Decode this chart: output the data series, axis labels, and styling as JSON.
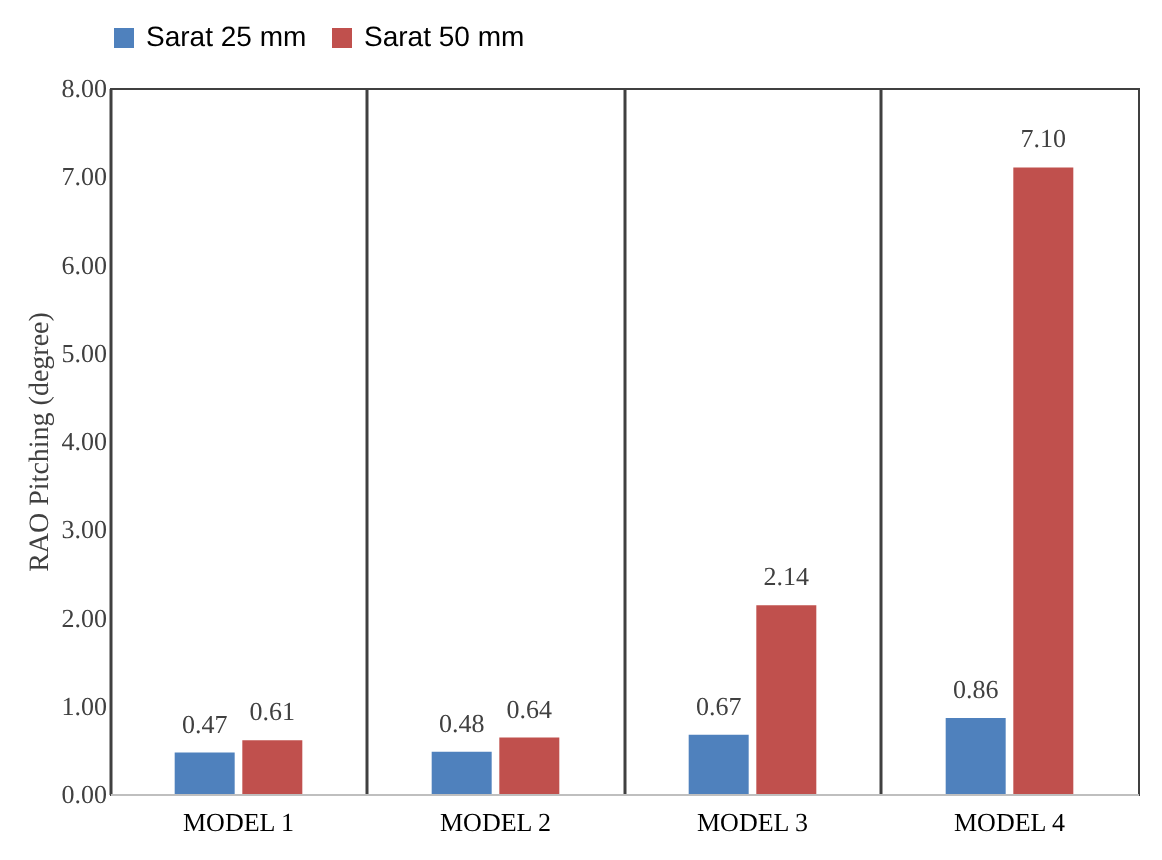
{
  "chart_data": {
    "type": "bar",
    "ylabel": "RAO Pitching (degree)",
    "categories": [
      "MODEL 1",
      "MODEL 2",
      "MODEL 3",
      "MODEL 4"
    ],
    "series": [
      {
        "name": "Sarat 25 mm",
        "color": "#4f81bd",
        "values": [
          0.47,
          0.48,
          0.67,
          0.86
        ],
        "value_labels": [
          "0.47",
          "0.48",
          "0.67",
          "0.86"
        ]
      },
      {
        "name": "Sarat 50 mm",
        "color": "#c0504d",
        "values": [
          0.61,
          0.64,
          2.14,
          7.1
        ],
        "value_labels": [
          "0.61",
          "0.64",
          "2.14",
          "7.10"
        ]
      }
    ],
    "ylim": [
      0,
      8
    ],
    "yticks": [
      {
        "value": 0,
        "label": "0.00"
      },
      {
        "value": 1,
        "label": "1.00"
      },
      {
        "value": 2,
        "label": "2.00"
      },
      {
        "value": 3,
        "label": "3.00"
      },
      {
        "value": 4,
        "label": "4.00"
      },
      {
        "value": 5,
        "label": "5.00"
      },
      {
        "value": 6,
        "label": "6.00"
      },
      {
        "value": 7,
        "label": "7.00"
      },
      {
        "value": 8,
        "label": "8.00"
      }
    ],
    "grid": "x",
    "legend": "top"
  }
}
